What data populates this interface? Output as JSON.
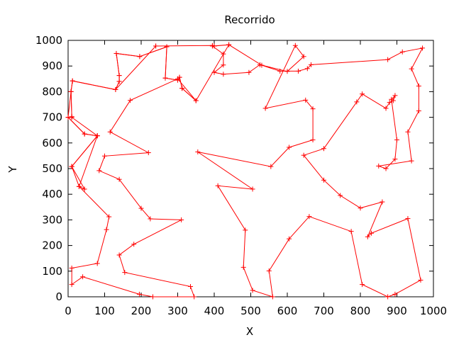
{
  "chart_data": {
    "type": "line",
    "title": "Recorrido",
    "xlabel": "X",
    "ylabel": "Y",
    "xlim": [
      0,
      1000
    ],
    "ylim": [
      0,
      1000
    ],
    "xticks": [
      "0",
      "100",
      "200",
      "300",
      "400",
      "500",
      "600",
      "700",
      "800",
      "900",
      "1000"
    ],
    "yticks": [
      "0",
      "100",
      "200",
      "300",
      "400",
      "500",
      "600",
      "700",
      "800",
      "900",
      "1000"
    ],
    "grid": false,
    "legend": "none",
    "marker": "+",
    "color": "#ff0000",
    "series": [
      {
        "points": [
          [
            0,
            700
          ],
          [
            10,
            702
          ],
          [
            8,
            800
          ],
          [
            12,
            842
          ],
          [
            130,
            808
          ],
          [
            140,
            840
          ],
          [
            140,
            863
          ],
          [
            132,
            949
          ],
          [
            196,
            937
          ],
          [
            270,
            975
          ],
          [
            266,
            853
          ],
          [
            300,
            845
          ],
          [
            305,
            856
          ],
          [
            312,
            813
          ],
          [
            350,
            765
          ],
          [
            440,
            983
          ],
          [
            395,
            978
          ],
          [
            425,
            947
          ],
          [
            425,
            904
          ],
          [
            400,
            875
          ],
          [
            425,
            868
          ],
          [
            495,
            875
          ],
          [
            525,
            905
          ],
          [
            600,
            879
          ],
          [
            645,
            937
          ],
          [
            622,
            980
          ],
          [
            540,
            735
          ],
          [
            650,
            767
          ],
          [
            670,
            733
          ],
          [
            670,
            612
          ],
          [
            605,
            583
          ],
          [
            555,
            508
          ],
          [
            355,
            565
          ],
          [
            505,
            420
          ],
          [
            410,
            433
          ],
          [
            485,
            260
          ],
          [
            480,
            115
          ],
          [
            505,
            25
          ],
          [
            560,
            0
          ],
          [
            550,
            101
          ],
          [
            605,
            226
          ],
          [
            660,
            313
          ],
          [
            775,
            255
          ],
          [
            805,
            48
          ],
          [
            875,
            0
          ],
          [
            895,
            10
          ],
          [
            965,
            65
          ],
          [
            930,
            305
          ],
          [
            830,
            248
          ],
          [
            820,
            234
          ],
          [
            860,
            370
          ],
          [
            800,
            346
          ],
          [
            745,
            395
          ],
          [
            700,
            455
          ],
          [
            645,
            552
          ],
          [
            700,
            578
          ],
          [
            790,
            760
          ],
          [
            805,
            791
          ],
          [
            870,
            735
          ],
          [
            880,
            758
          ],
          [
            890,
            765
          ],
          [
            895,
            785
          ],
          [
            885,
            770
          ],
          [
            900,
            612
          ],
          [
            895,
            537
          ],
          [
            870,
            500
          ],
          [
            850,
            510
          ],
          [
            940,
            530
          ],
          [
            930,
            643
          ],
          [
            960,
            725
          ],
          [
            960,
            822
          ],
          [
            940,
            889
          ],
          [
            970,
            970
          ],
          [
            915,
            955
          ],
          [
            875,
            925
          ],
          [
            665,
            905
          ],
          [
            655,
            890
          ],
          [
            630,
            880
          ],
          [
            580,
            880
          ],
          [
            530,
            903
          ],
          [
            440,
            983
          ],
          [
            400,
            978
          ],
          [
            395,
            980
          ],
          [
            240,
            978
          ]
        ]
      },
      {
        "points": [
          [
            240,
            978
          ],
          [
            130,
            808
          ]
        ]
      },
      {
        "points": [
          [
            8,
            800
          ],
          [
            0,
            700
          ],
          [
            45,
            635
          ],
          [
            80,
            628
          ],
          [
            30,
            430
          ],
          [
            45,
            420
          ],
          [
            10,
            508
          ],
          [
            10,
            508
          ],
          [
            80,
            628
          ],
          [
            10,
            700
          ]
        ]
      }
    ],
    "route": [
      [
        0,
        700
      ],
      [
        10,
        702
      ],
      [
        8,
        800
      ],
      [
        12,
        842
      ],
      [
        130,
        808
      ],
      [
        140,
        840
      ],
      [
        140,
        863
      ],
      [
        132,
        949
      ],
      [
        196,
        937
      ],
      [
        270,
        975
      ],
      [
        266,
        853
      ],
      [
        300,
        845
      ],
      [
        305,
        856
      ],
      [
        312,
        813
      ],
      [
        350,
        765
      ],
      [
        300,
        850
      ],
      [
        170,
        766
      ],
      [
        115,
        643
      ],
      [
        220,
        562
      ],
      [
        100,
        549
      ],
      [
        85,
        492
      ],
      [
        140,
        458
      ],
      [
        200,
        345
      ],
      [
        225,
        304
      ],
      [
        310,
        300
      ],
      [
        180,
        205
      ],
      [
        140,
        163
      ],
      [
        155,
        95
      ],
      [
        335,
        40
      ],
      [
        345,
        0
      ],
      [
        232,
        0
      ],
      [
        195,
        10
      ],
      [
        40,
        78
      ],
      [
        10,
        48
      ],
      [
        10,
        112
      ],
      [
        80,
        130
      ],
      [
        105,
        262
      ],
      [
        112,
        312
      ],
      [
        30,
        430
      ],
      [
        10,
        508
      ],
      [
        80,
        628
      ],
      [
        45,
        635
      ],
      [
        0,
        700
      ]
    ]
  }
}
